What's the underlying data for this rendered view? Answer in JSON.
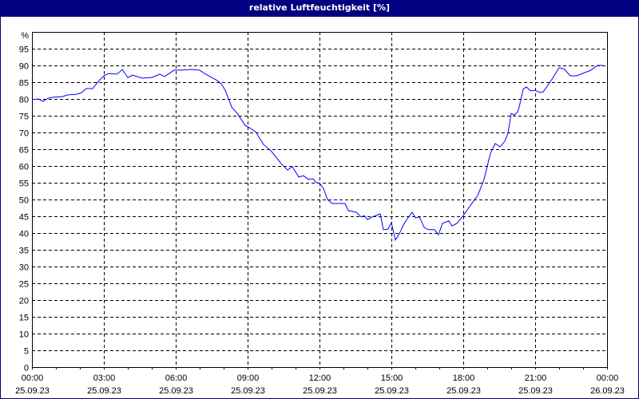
{
  "chart_data": {
    "type": "line",
    "title": "relative Luftfeuchtigkeit [%]",
    "ylabel": "%",
    "ylim": [
      0,
      100
    ],
    "yticks": [
      "95",
      "90",
      "85",
      "80",
      "75",
      "70",
      "65",
      "60",
      "55",
      "50",
      "45",
      "40",
      "35",
      "30",
      "25",
      "20",
      "15",
      "10",
      "5",
      "0"
    ],
    "xlim": [
      "25.09.23 00:00",
      "26.09.23 00:00"
    ],
    "xticks": [
      {
        "time": "00:00",
        "date": "25.09.23"
      },
      {
        "time": "03:00",
        "date": "25.09.23"
      },
      {
        "time": "06:00",
        "date": "25.09.23"
      },
      {
        "time": "09:00",
        "date": "25.09.23"
      },
      {
        "time": "12:00",
        "date": "25.09.23"
      },
      {
        "time": "15:00",
        "date": "25.09.23"
      },
      {
        "time": "18:00",
        "date": "25.09.23"
      },
      {
        "time": "21:00",
        "date": "25.09.23"
      },
      {
        "time": "00:00",
        "date": "26.09.23"
      }
    ],
    "grid": true,
    "line_color": "#0000ff",
    "series": [
      {
        "x": [
          "00:00",
          "00:16",
          "00:28",
          "00:40",
          "00:52",
          "01:16",
          "01:28",
          "01:52",
          "02:04",
          "02:16",
          "02:32",
          "02:48",
          "03:00",
          "03:12",
          "03:32",
          "03:40",
          "03:46",
          "04:00",
          "04:12",
          "04:36",
          "05:00",
          "05:20",
          "05:32",
          "05:56",
          "06:12",
          "06:40",
          "07:00",
          "07:12",
          "07:44",
          "07:54",
          "08:04",
          "08:20",
          "08:34",
          "08:54",
          "09:08",
          "09:20",
          "09:40",
          "10:00",
          "10:24",
          "10:40",
          "10:52",
          "11:08",
          "11:20",
          "11:32",
          "11:44",
          "11:50",
          "12:00",
          "12:10",
          "12:20",
          "12:32",
          "13:04",
          "13:12",
          "13:32",
          "13:44",
          "13:52",
          "14:00",
          "14:12",
          "14:32",
          "14:40",
          "14:52",
          "15:00",
          "15:10",
          "15:20",
          "15:30",
          "15:40",
          "15:52",
          "16:00",
          "16:10",
          "16:22",
          "16:32",
          "16:48",
          "16:58",
          "17:08",
          "17:24",
          "17:32",
          "17:44",
          "18:00",
          "18:20",
          "18:36",
          "18:52",
          "19:08",
          "19:20",
          "19:32",
          "19:44",
          "19:52",
          "20:00",
          "20:08",
          "20:16",
          "20:20",
          "20:30",
          "20:38",
          "20:48",
          "21:00",
          "21:12",
          "21:20",
          "21:40",
          "22:00",
          "22:12",
          "22:28",
          "22:44",
          "23:20",
          "23:36",
          "23:50"
        ],
        "y": [
          79.8,
          80,
          79.3,
          80.2,
          80.5,
          80.7,
          81.2,
          81.4,
          81.9,
          83.1,
          83.1,
          85.5,
          86.9,
          87.6,
          87.4,
          88.1,
          88.8,
          86.4,
          87.1,
          86.2,
          86.4,
          87.4,
          86.7,
          88.6,
          88.6,
          88.8,
          88.6,
          87.6,
          85.5,
          84.5,
          82.6,
          77.6,
          75.7,
          72.1,
          71.2,
          70.2,
          66.4,
          64.3,
          60.7,
          58.8,
          59.8,
          56.7,
          57.1,
          56,
          56.2,
          55.2,
          54.8,
          53.3,
          50,
          48.8,
          48.8,
          46.7,
          46.2,
          44.8,
          45.2,
          44,
          44.8,
          45.7,
          41,
          41.2,
          43.1,
          37.9,
          39.8,
          42.4,
          44.3,
          46.2,
          44.5,
          44.8,
          41.7,
          41,
          41,
          39.5,
          42.9,
          43.6,
          42.1,
          42.9,
          45.2,
          48.6,
          51.2,
          56,
          63.8,
          66.7,
          65.7,
          67.4,
          69.8,
          75.7,
          75.2,
          76.2,
          77.6,
          82.9,
          83.6,
          82.4,
          82.6,
          81.9,
          82.1,
          85.5,
          89.3,
          89,
          86.9,
          86.9,
          88.6,
          90,
          90
        ]
      }
    ]
  }
}
